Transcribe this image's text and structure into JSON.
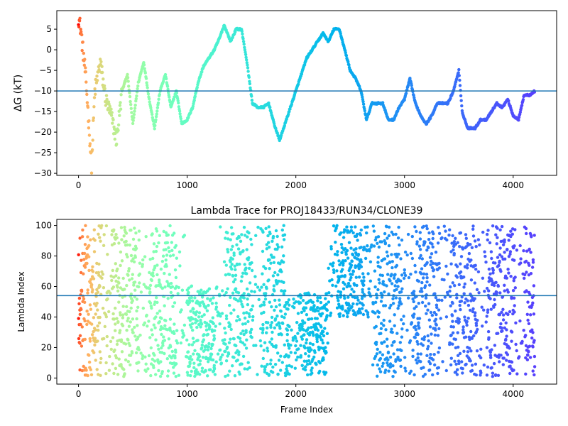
{
  "chart_data": [
    {
      "type": "scatter",
      "title": "",
      "xlabel": "",
      "ylabel": "ΔG (kT)",
      "xlim": [
        -200,
        4400
      ],
      "ylim": [
        -30.5,
        9.5
      ],
      "xticks": [
        0,
        1000,
        2000,
        3000,
        4000
      ],
      "yticks": [
        5,
        0,
        -5,
        -10,
        -15,
        -20,
        -25,
        -30
      ],
      "hline": -10,
      "hline_color": "#1f77b4",
      "colormap": "rainbow",
      "color_by": "frame index (high = purple, low = red)",
      "grid": false,
      "series": [
        {
          "trace_points": [
            [
              0,
              8
            ],
            [
              20,
              5
            ],
            [
              40,
              0
            ],
            [
              60,
              -5
            ],
            [
              80,
              -12
            ],
            [
              100,
              -20
            ],
            [
              120,
              -28
            ],
            [
              150,
              -10
            ],
            [
              200,
              -3
            ],
            [
              250,
              -12
            ],
            [
              300,
              -16
            ],
            [
              350,
              -22
            ],
            [
              400,
              -10
            ],
            [
              450,
              -6
            ],
            [
              500,
              -18
            ],
            [
              550,
              -8
            ],
            [
              600,
              -3
            ],
            [
              650,
              -12
            ],
            [
              700,
              -19
            ],
            [
              750,
              -10
            ],
            [
              800,
              -6
            ],
            [
              850,
              -14
            ],
            [
              900,
              -10
            ],
            [
              950,
              -18
            ],
            [
              1000,
              -17
            ],
            [
              1050,
              -14
            ],
            [
              1100,
              -8
            ],
            [
              1150,
              -4
            ],
            [
              1200,
              -2
            ],
            [
              1250,
              0
            ],
            [
              1300,
              3
            ],
            [
              1340,
              6
            ],
            [
              1400,
              2
            ],
            [
              1450,
              5
            ],
            [
              1500,
              5
            ],
            [
              1550,
              -3
            ],
            [
              1600,
              -13
            ],
            [
              1650,
              -14
            ],
            [
              1700,
              -14
            ],
            [
              1750,
              -13
            ],
            [
              1800,
              -18
            ],
            [
              1850,
              -22
            ],
            [
              1900,
              -18
            ],
            [
              1950,
              -14
            ],
            [
              2000,
              -10
            ],
            [
              2050,
              -6
            ],
            [
              2100,
              -2
            ],
            [
              2150,
              0
            ],
            [
              2200,
              2
            ],
            [
              2250,
              4
            ],
            [
              2300,
              2
            ],
            [
              2350,
              5
            ],
            [
              2400,
              5
            ],
            [
              2450,
              0
            ],
            [
              2500,
              -5
            ],
            [
              2550,
              -7
            ],
            [
              2600,
              -10
            ],
            [
              2650,
              -17
            ],
            [
              2700,
              -13
            ],
            [
              2750,
              -13
            ],
            [
              2800,
              -13
            ],
            [
              2850,
              -17
            ],
            [
              2900,
              -17
            ],
            [
              2950,
              -14
            ],
            [
              3000,
              -12
            ],
            [
              3050,
              -7
            ],
            [
              3100,
              -13
            ],
            [
              3150,
              -16
            ],
            [
              3200,
              -18
            ],
            [
              3250,
              -16
            ],
            [
              3300,
              -13
            ],
            [
              3350,
              -13
            ],
            [
              3400,
              -13
            ],
            [
              3450,
              -10
            ],
            [
              3500,
              -5
            ],
            [
              3530,
              -15
            ],
            [
              3580,
              -19
            ],
            [
              3650,
              -19
            ],
            [
              3700,
              -17
            ],
            [
              3750,
              -17
            ],
            [
              3800,
              -15
            ],
            [
              3850,
              -13
            ],
            [
              3900,
              -14
            ],
            [
              3950,
              -12
            ],
            [
              4000,
              -16
            ],
            [
              4050,
              -17
            ],
            [
              4100,
              -11
            ],
            [
              4150,
              -11
            ],
            [
              4200,
              -10
            ]
          ]
        }
      ]
    },
    {
      "type": "scatter",
      "title": "Lambda Trace for PROJ18433/RUN34/CLONE39",
      "xlabel": "Frame Index",
      "ylabel": "Lambda Index",
      "xlim": [
        -200,
        4400
      ],
      "ylim": [
        -4,
        104
      ],
      "xticks": [
        0,
        1000,
        2000,
        3000,
        4000
      ],
      "yticks": [
        0,
        20,
        40,
        60,
        80,
        100
      ],
      "hline": 54,
      "hline_color": "#1f77b4",
      "colormap": "rainbow",
      "color_by": "frame index (high = purple, low = red)",
      "grid": false,
      "series": [
        {
          "x_range": [
            0,
            4200
          ],
          "y_range": [
            1,
            100
          ],
          "point_count": 3000,
          "note_sampled": true
        }
      ]
    }
  ]
}
